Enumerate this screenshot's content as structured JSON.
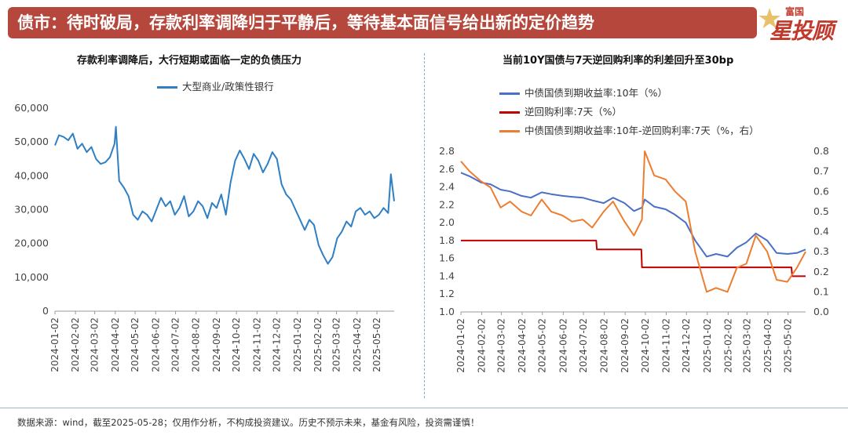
{
  "banner": {
    "title": "债市：待时破局，存款利率调降归于平静后，等待基本面信号给出新的定价趋势"
  },
  "logo": {
    "small": "富国",
    "big": "星投顾"
  },
  "footer": {
    "note": "数据来源：wind，截至2025-05-28；仅用作分析，不构成投资建议。历史不预示未来，基金有风险，投资需谨慎！"
  },
  "colors": {
    "banner_bg": "#b5473c",
    "blue": "#2f7fc4",
    "blue2": "#4a6fc7",
    "red": "#c00000",
    "orange": "#ed7d31"
  },
  "chart_data": [
    {
      "type": "line",
      "title": "存款利率调降后，大行短期或面临一定的负债压力",
      "xlabel": "",
      "ylabel": "",
      "ylim": [
        0,
        60000
      ],
      "yticks": [
        "60,000",
        "50,000",
        "40,000",
        "30,000",
        "20,000",
        "10,000",
        "0"
      ],
      "xticks": [
        "2024-01-02",
        "2024-02-02",
        "2024-03-02",
        "2024-04-02",
        "2024-05-02",
        "2024-06-02",
        "2024-07-02",
        "2024-08-02",
        "2024-09-02",
        "2024-10-02",
        "2024-11-02",
        "2024-12-02",
        "2025-01-02",
        "2025-02-02",
        "2025-03-02",
        "2025-04-02",
        "2025-05-02"
      ],
      "grid": false,
      "legend": "top",
      "series": [
        {
          "name": "大型商业/政策性银行",
          "color": "#2f7fc4",
          "x": [
            "2024-01-02",
            "2024-01-08",
            "2024-01-15",
            "2024-01-22",
            "2024-01-29",
            "2024-02-05",
            "2024-02-12",
            "2024-02-19",
            "2024-02-26",
            "2024-03-04",
            "2024-03-11",
            "2024-03-18",
            "2024-03-25",
            "2024-04-01",
            "2024-04-03",
            "2024-04-08",
            "2024-04-15",
            "2024-04-22",
            "2024-04-29",
            "2024-05-06",
            "2024-05-13",
            "2024-05-20",
            "2024-05-27",
            "2024-06-03",
            "2024-06-10",
            "2024-06-17",
            "2024-06-24",
            "2024-07-01",
            "2024-07-08",
            "2024-07-15",
            "2024-07-22",
            "2024-07-29",
            "2024-08-05",
            "2024-08-12",
            "2024-08-19",
            "2024-08-26",
            "2024-09-02",
            "2024-09-09",
            "2024-09-16",
            "2024-09-23",
            "2024-09-30",
            "2024-10-07",
            "2024-10-14",
            "2024-10-21",
            "2024-10-28",
            "2024-11-04",
            "2024-11-11",
            "2024-11-18",
            "2024-11-25",
            "2024-12-02",
            "2024-12-09",
            "2024-12-16",
            "2024-12-23",
            "2024-12-30",
            "2025-01-06",
            "2025-01-13",
            "2025-01-20",
            "2025-01-27",
            "2025-02-03",
            "2025-02-10",
            "2025-02-17",
            "2025-02-24",
            "2025-03-03",
            "2025-03-10",
            "2025-03-17",
            "2025-03-24",
            "2025-03-31",
            "2025-04-07",
            "2025-04-14",
            "2025-04-21",
            "2025-04-28",
            "2025-05-05",
            "2025-05-12",
            "2025-05-19",
            "2025-05-23",
            "2025-05-28"
          ],
          "values": [
            49000,
            52000,
            51500,
            50500,
            52500,
            48000,
            49500,
            47000,
            48500,
            45000,
            43500,
            44000,
            45500,
            49500,
            54500,
            38500,
            36500,
            34000,
            28500,
            27000,
            29500,
            28500,
            26500,
            30000,
            33500,
            31000,
            32500,
            28500,
            30500,
            34000,
            28000,
            29500,
            32500,
            31000,
            27500,
            32000,
            30500,
            34500,
            28500,
            38000,
            44500,
            47500,
            45000,
            42000,
            46500,
            44500,
            41000,
            43500,
            47000,
            45000,
            37500,
            34500,
            33000,
            30000,
            27000,
            24000,
            27000,
            25500,
            19500,
            16500,
            14000,
            16000,
            21500,
            23500,
            26500,
            25000,
            29500,
            30500,
            28500,
            29500,
            27500,
            28500,
            30500,
            29000,
            40500,
            32500
          ]
        }
      ]
    },
    {
      "type": "line",
      "title": "当前10Y国债与7天逆回购利率的利差回升至30bp",
      "xlabel": "",
      "ylabel": "",
      "ylim": [
        1.0,
        2.8
      ],
      "ylim_right": [
        0.0,
        0.8
      ],
      "yticks": [
        "2.8",
        "2.6",
        "2.4",
        "2.2",
        "2.0",
        "1.8",
        "1.6",
        "1.4",
        "1.2",
        "1.0"
      ],
      "yticks_right": [
        "0.8",
        "0.7",
        "0.6",
        "0.5",
        "0.4",
        "0.3",
        "0.2",
        "0.1",
        "0.0"
      ],
      "xticks": [
        "2024-01-02",
        "2024-02-02",
        "2024-03-02",
        "2024-04-02",
        "2024-05-02",
        "2024-06-02",
        "2024-07-02",
        "2024-08-02",
        "2024-09-02",
        "2024-10-02",
        "2024-11-02",
        "2024-12-02",
        "2025-01-02",
        "2025-02-02",
        "2025-03-02",
        "2025-04-02",
        "2025-05-02"
      ],
      "grid": false,
      "legend": "top-left",
      "series": [
        {
          "name": "中债国债到期收益率:10年（%）",
          "color": "#4a6fc7",
          "axis": "left",
          "x": [
            "2024-01-02",
            "2024-01-15",
            "2024-02-01",
            "2024-02-15",
            "2024-03-01",
            "2024-03-15",
            "2024-04-01",
            "2024-04-15",
            "2024-05-01",
            "2024-05-15",
            "2024-06-01",
            "2024-06-15",
            "2024-07-01",
            "2024-07-15",
            "2024-08-01",
            "2024-08-15",
            "2024-09-01",
            "2024-09-15",
            "2024-09-27",
            "2024-10-01",
            "2024-10-15",
            "2024-11-01",
            "2024-11-15",
            "2024-12-01",
            "2024-12-15",
            "2025-01-01",
            "2025-01-15",
            "2025-02-01",
            "2025-02-15",
            "2025-03-01",
            "2025-03-15",
            "2025-04-01",
            "2025-04-15",
            "2025-05-01",
            "2025-05-15",
            "2025-05-28"
          ],
          "values": [
            2.56,
            2.52,
            2.45,
            2.43,
            2.37,
            2.35,
            2.3,
            2.28,
            2.34,
            2.32,
            2.3,
            2.29,
            2.28,
            2.25,
            2.22,
            2.28,
            2.22,
            2.13,
            2.17,
            2.26,
            2.18,
            2.15,
            2.09,
            2.0,
            1.8,
            1.62,
            1.65,
            1.62,
            1.72,
            1.78,
            1.88,
            1.8,
            1.66,
            1.65,
            1.66,
            1.7
          ]
        },
        {
          "name": "逆回购利率:7天（%）",
          "color": "#c00000",
          "axis": "left",
          "x": [
            "2024-01-02",
            "2024-07-21",
            "2024-07-22",
            "2024-09-26",
            "2024-09-27",
            "2025-05-07",
            "2025-05-08",
            "2025-05-28"
          ],
          "values": [
            1.8,
            1.8,
            1.7,
            1.7,
            1.5,
            1.5,
            1.4,
            1.4
          ]
        },
        {
          "name": "中债国债到期收益率:10年-逆回购利率:7天（%，右）",
          "color": "#ed7d31",
          "axis": "right",
          "x": [
            "2024-01-02",
            "2024-01-15",
            "2024-02-01",
            "2024-02-15",
            "2024-03-01",
            "2024-03-15",
            "2024-04-01",
            "2024-04-15",
            "2024-05-01",
            "2024-05-15",
            "2024-06-01",
            "2024-06-15",
            "2024-07-01",
            "2024-07-15",
            "2024-08-01",
            "2024-08-15",
            "2024-09-01",
            "2024-09-15",
            "2024-09-27",
            "2024-10-01",
            "2024-10-15",
            "2024-11-01",
            "2024-11-15",
            "2024-12-01",
            "2024-12-15",
            "2025-01-01",
            "2025-01-15",
            "2025-02-01",
            "2025-02-15",
            "2025-03-01",
            "2025-03-15",
            "2025-04-01",
            "2025-04-15",
            "2025-05-01",
            "2025-05-15",
            "2025-05-28"
          ],
          "values": [
            0.75,
            0.7,
            0.65,
            0.62,
            0.52,
            0.55,
            0.5,
            0.48,
            0.56,
            0.5,
            0.48,
            0.45,
            0.46,
            0.42,
            0.5,
            0.55,
            0.45,
            0.38,
            0.46,
            0.8,
            0.68,
            0.66,
            0.6,
            0.55,
            0.3,
            0.1,
            0.12,
            0.1,
            0.22,
            0.24,
            0.38,
            0.3,
            0.16,
            0.15,
            0.22,
            0.3
          ]
        }
      ]
    }
  ]
}
